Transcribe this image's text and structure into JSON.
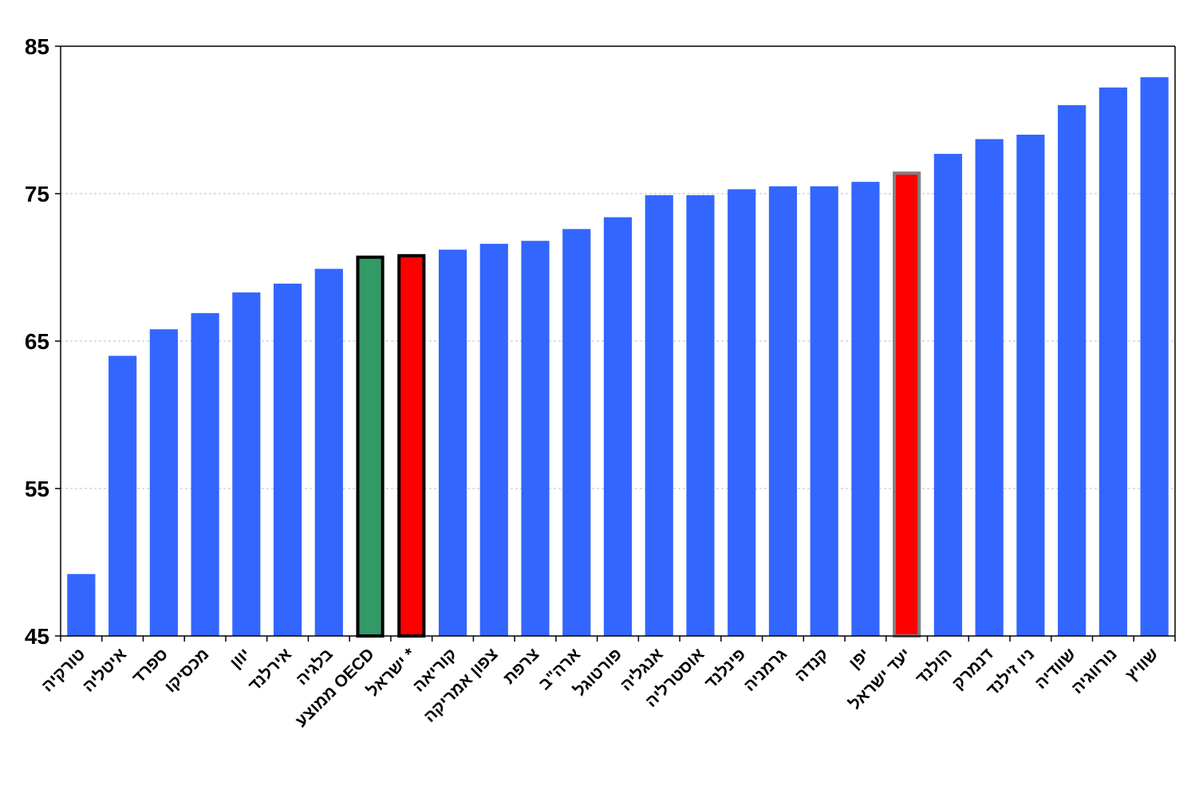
{
  "chart_data": {
    "type": "bar",
    "title": "",
    "xlabel": "",
    "ylabel": "",
    "ylim": [
      45,
      85
    ],
    "yticks": [
      45,
      55,
      65,
      75,
      85
    ],
    "grid": "horizontal dashed",
    "legend": "none",
    "colors": {
      "default": "#3366FF",
      "oecd_average": "#339966",
      "israel": "#FF0000",
      "israel_target": "#FF0000"
    },
    "categories": [
      "טורקיה",
      "איטליה",
      "ספרד",
      "מכסיקו",
      "יוון",
      "אירלנד",
      "בלגיה",
      "ממוצע OECD",
      "ישראל *",
      "קוריאה",
      "צפון אמריקה",
      "צרפת",
      "ארה\"ב",
      "פורטוגל",
      "אנגליה",
      "אוסטרליה",
      "פינלנד",
      "גרמניה",
      "קנדה",
      "יפן",
      "יעד ישראל",
      "הולנד",
      "דנמרק",
      "ניו זילנד",
      "שוודיה",
      "נורווגיה",
      "שוויץ"
    ],
    "values": [
      49.2,
      64.0,
      65.8,
      66.9,
      68.3,
      68.9,
      69.9,
      70.8,
      70.9,
      71.2,
      71.6,
      71.8,
      72.6,
      73.4,
      74.9,
      74.9,
      75.3,
      75.5,
      75.5,
      75.8,
      76.5,
      77.7,
      78.7,
      79.0,
      81.0,
      82.2,
      82.9
    ],
    "highlight": {
      "7": "oecd_average",
      "8": "israel",
      "20": "israel_target"
    }
  }
}
